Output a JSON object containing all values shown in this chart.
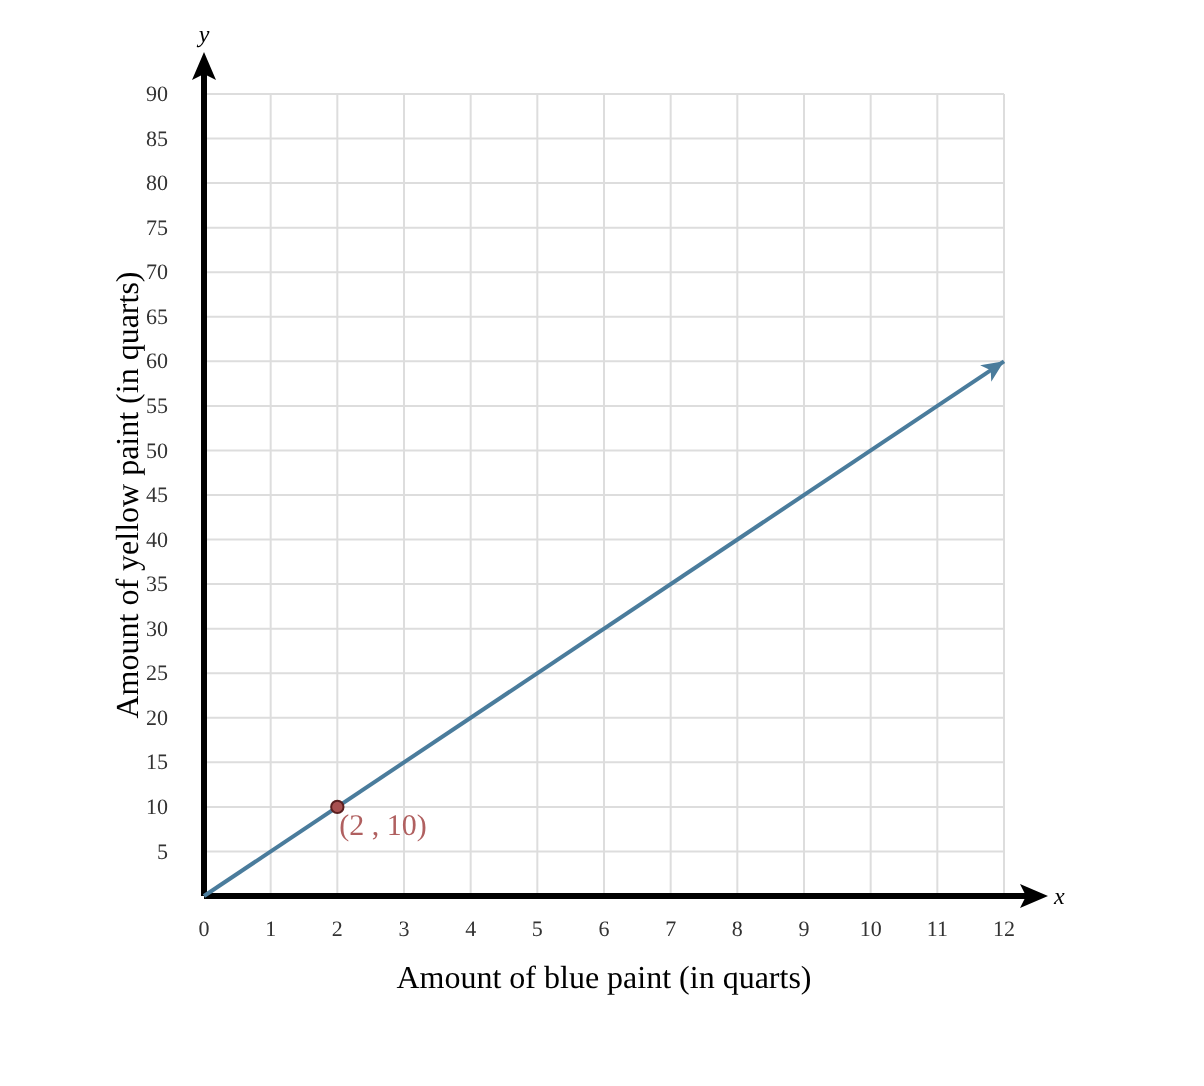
{
  "chart_data": {
    "type": "line",
    "xlabel": "Amount of blue paint (in quarts)",
    "ylabel": "Amount of yellow paint (in quarts)",
    "x": [
      0,
      12
    ],
    "series": [
      {
        "color": "#4a7c9c",
        "values": [
          0,
          60
        ],
        "marker": "none"
      },
      {
        "type": "scatter",
        "color": "#a85050",
        "x": [
          2
        ],
        "values": [
          10
        ],
        "marker": "circle"
      }
    ],
    "xlim": [
      0,
      12
    ],
    "ylim": [
      0,
      90
    ],
    "xticks": [
      0,
      1,
      2,
      3,
      4,
      5,
      6,
      7,
      8,
      9,
      10,
      11,
      12
    ],
    "yticks": [
      5,
      10,
      15,
      20,
      25,
      30,
      35,
      40,
      45,
      50,
      55,
      60,
      65,
      70,
      75,
      80,
      85,
      90
    ],
    "grid": true,
    "annotations": [
      {
        "text": "(2 , 10)",
        "x": 2,
        "y": 10
      },
      "x",
      "y"
    ]
  }
}
